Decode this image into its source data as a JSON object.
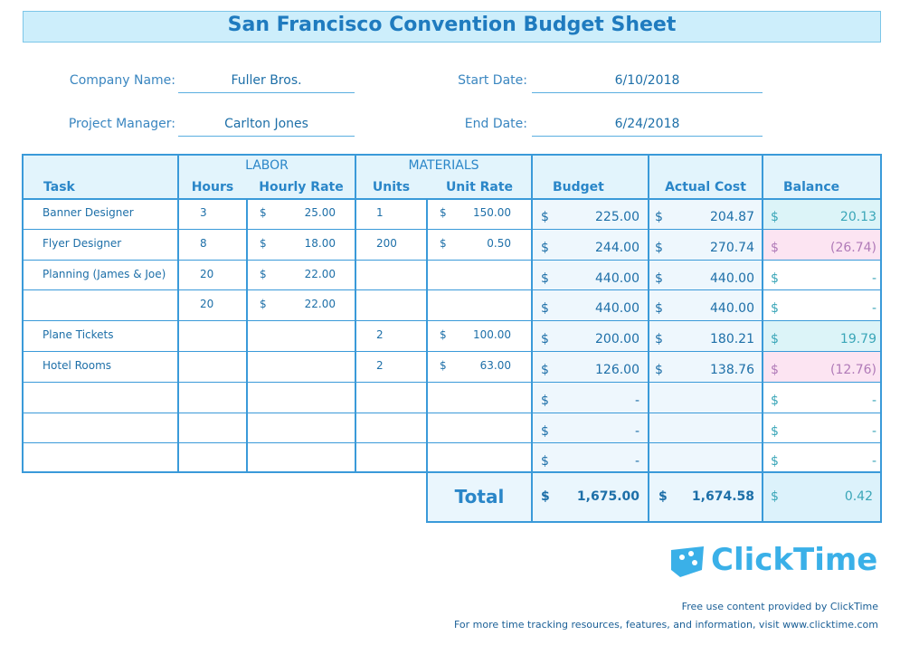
{
  "header": {
    "title": "San Francisco Convention Budget Sheet"
  },
  "info": {
    "company_label": "Company Name:",
    "company": "Fuller Bros.",
    "manager_label": "Project Manager:",
    "manager": "Carlton Jones",
    "start_label": "Start Date:",
    "start": "6/10/2018",
    "end_label": "End Date:",
    "end": "6/24/2018"
  },
  "table": {
    "groups": [
      "LABOR",
      "MATERIALS"
    ],
    "columns": [
      "Task",
      "Hours",
      "Hourly Rate",
      "Units",
      "Unit Rate",
      "Budget",
      "Actual Cost",
      "Balance"
    ],
    "currency": "$",
    "rows": [
      [
        "Banner Designer",
        "3",
        "25.00",
        "1",
        "150.00",
        "225.00",
        "204.87",
        "20.13"
      ],
      [
        "Flyer Designer",
        "8",
        "18.00",
        "200",
        "0.50",
        "244.00",
        "270.74",
        "(26.74)"
      ],
      [
        "Planning (James & Joe)",
        "20",
        "22.00",
        null,
        null,
        "440.00",
        "440.00",
        "-"
      ],
      [
        null,
        "20",
        "22.00",
        null,
        null,
        "440.00",
        "440.00",
        "-"
      ],
      [
        "Plane Tickets",
        null,
        null,
        "2",
        "100.00",
        "200.00",
        "180.21",
        "19.79"
      ],
      [
        "Hotel Rooms",
        null,
        null,
        "2",
        "63.00",
        "126.00",
        "138.76",
        "(12.76)"
      ],
      [
        null,
        null,
        null,
        null,
        null,
        "-",
        null,
        "-"
      ],
      [
        null,
        null,
        null,
        null,
        null,
        "-",
        null,
        "-"
      ],
      [
        null,
        null,
        null,
        null,
        null,
        "-",
        null,
        "-"
      ]
    ],
    "total": {
      "label": "Total",
      "budget": "1,675.00",
      "actual": "1,674.58",
      "balance": "0.42"
    }
  },
  "footer": {
    "logo": "ClickTime",
    "credit": "Free use content provided by ClickTime",
    "more": "For more time tracking resources, features, and information, visit www.clicktime.com"
  }
}
